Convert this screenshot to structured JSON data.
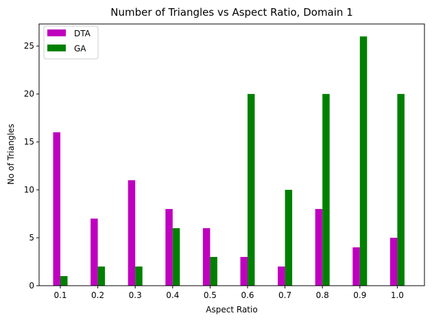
{
  "chart_data": {
    "type": "bar",
    "title": "Number of Triangles vs Aspect Ratio, Domain 1",
    "xlabel": "Aspect Ratio",
    "ylabel": "No of Triangles",
    "categories": [
      "0.1",
      "0.2",
      "0.3",
      "0.4",
      "0.5",
      "0.6",
      "0.7",
      "0.8",
      "0.9",
      "1.0"
    ],
    "series": [
      {
        "name": "DTA",
        "color": "#bf00bf",
        "values": [
          16,
          7,
          11,
          8,
          6,
          3,
          2,
          8,
          4,
          5
        ]
      },
      {
        "name": "GA",
        "color": "#008000",
        "values": [
          1,
          2,
          2,
          6,
          3,
          20,
          10,
          20,
          26,
          20
        ]
      }
    ],
    "ylim": [
      0,
      27.3
    ],
    "yticks": [
      0,
      5,
      10,
      15,
      20,
      25
    ],
    "grid": false,
    "legend": "top-left"
  }
}
